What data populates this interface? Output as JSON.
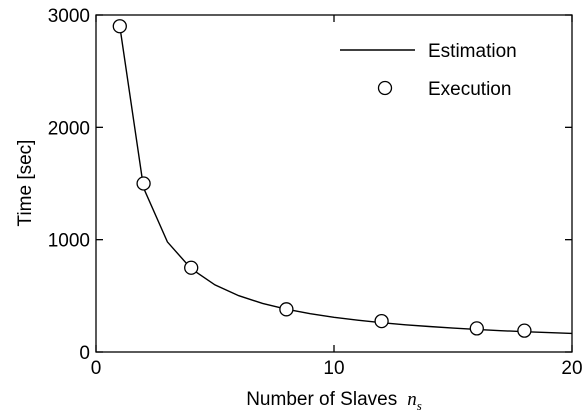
{
  "chart_data": {
    "type": "line",
    "x_label": "Number of Slaves",
    "x_label_var": "n",
    "x_label_sub": "s",
    "y_label": "Time [sec]",
    "xlim": [
      0,
      20
    ],
    "xticks": [
      0,
      10,
      20
    ],
    "ylim": [
      0,
      3000
    ],
    "yticks": [
      0,
      1000,
      2000,
      3000
    ],
    "legend": "upper right",
    "series": [
      {
        "name": "Estimation",
        "color": "#000000",
        "style": "line",
        "x": [
          1,
          2,
          3,
          4,
          5,
          6,
          7,
          8,
          9,
          10,
          11,
          12,
          13,
          14,
          15,
          16,
          17,
          18,
          19,
          20
        ],
        "values": [
          2900,
          1460,
          980,
          741,
          597,
          501,
          432,
          381,
          341,
          309,
          283,
          261,
          242,
          227,
          213,
          201,
          190,
          181,
          173,
          165
        ]
      },
      {
        "name": "Execution",
        "color": "#000000",
        "style": "marker",
        "x": [
          1,
          2,
          4,
          8,
          12,
          16,
          18
        ],
        "values": [
          2900,
          1500,
          750,
          380,
          275,
          210,
          190
        ]
      }
    ]
  }
}
